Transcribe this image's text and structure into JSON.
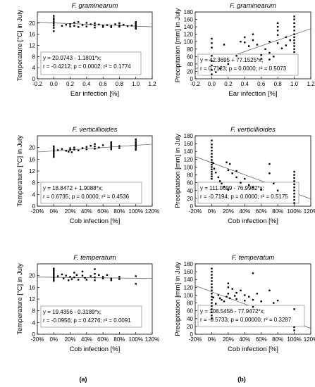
{
  "panel_labels": [
    "(a)",
    "(b)"
  ],
  "chart_data": [
    {
      "type": "scatter",
      "title": "F. graminearum",
      "xlabel": "Ear infection [%]",
      "ylabel": "Temperature [°C] in July",
      "xlim": [
        -0.2,
        1.2
      ],
      "ylim": [
        0,
        24
      ],
      "xticks": [
        -0.2,
        0,
        0.2,
        0.4,
        0.6,
        0.8,
        1,
        1.2
      ],
      "xtick_labels": [
        "-0.2",
        "0.0",
        "0.2",
        "0.4",
        "0.6",
        "0.8",
        "1.0",
        "1.2"
      ],
      "yticks": [
        0,
        4,
        8,
        12,
        16,
        20
      ],
      "ytick_labels": [
        "0",
        "4",
        "8",
        "12",
        "16",
        "20"
      ],
      "grid": false,
      "equation_lines": [
        "y = 20.0743 - 1.1801*x;",
        "r = -0.4212; p = 0.0002; r² = 0.1774"
      ],
      "regression": {
        "intercept": 20.0743,
        "slope": -1.1801
      },
      "points": [
        [
          0,
          22.6
        ],
        [
          0,
          21.8
        ],
        [
          0,
          21.2
        ],
        [
          0,
          20.5
        ],
        [
          0,
          19.8
        ],
        [
          0,
          19.1
        ],
        [
          0,
          18.3
        ],
        [
          0,
          17.1
        ],
        [
          0.1,
          19.0
        ],
        [
          0.15,
          19.4
        ],
        [
          0.2,
          18.8
        ],
        [
          0.2,
          19.6
        ],
        [
          0.25,
          20.2
        ],
        [
          0.25,
          19.0
        ],
        [
          0.3,
          20.4
        ],
        [
          0.3,
          18.6
        ],
        [
          0.35,
          19.3
        ],
        [
          0.4,
          20.1
        ],
        [
          0.4,
          18.8
        ],
        [
          0.45,
          19.6
        ],
        [
          0.5,
          20.0
        ],
        [
          0.5,
          19.2
        ],
        [
          0.5,
          18.4
        ],
        [
          0.55,
          19.5
        ],
        [
          0.6,
          19.1
        ],
        [
          0.6,
          18.6
        ],
        [
          0.65,
          19.3
        ],
        [
          0.7,
          19.0
        ],
        [
          0.7,
          18.5
        ],
        [
          0.75,
          19.6
        ],
        [
          0.8,
          20.0
        ],
        [
          0.8,
          19.2
        ],
        [
          0.8,
          18.7
        ],
        [
          0.85,
          19.4
        ],
        [
          0.9,
          18.9
        ],
        [
          0.95,
          19.1
        ],
        [
          1,
          20.4
        ],
        [
          1,
          19.8
        ],
        [
          1,
          19.2
        ],
        [
          1,
          18.6
        ],
        [
          1,
          18.0
        ]
      ]
    },
    {
      "type": "scatter",
      "title": "F. graminearum",
      "xlabel": "Ear infection [%]",
      "ylabel": "Precipitation [mm] in July",
      "xlim": [
        -0.2,
        1.2
      ],
      "ylim": [
        0,
        180
      ],
      "xticks": [
        -0.2,
        0,
        0.2,
        0.4,
        0.6,
        0.8,
        1,
        1.2
      ],
      "xtick_labels": [
        "-0.2",
        "0.0",
        "0.2",
        "0.4",
        "0.6",
        "0.8",
        "1.0",
        "1.2"
      ],
      "yticks": [
        0,
        20,
        40,
        60,
        80,
        100,
        120,
        140,
        160,
        180
      ],
      "ytick_labels": [
        "0",
        "20",
        "40",
        "60",
        "80",
        "100",
        "120",
        "140",
        "160",
        "180"
      ],
      "grid": false,
      "equation_lines": [
        "y = 42.3695 + 77.1525*x;",
        "r = 0.7123; p = 0.0000; r² = 0.5073"
      ],
      "regression": {
        "intercept": 42.3695,
        "slope": 77.1525
      },
      "points": [
        [
          0,
          108
        ],
        [
          0,
          96
        ],
        [
          0,
          84
        ],
        [
          0,
          62
        ],
        [
          0,
          48
        ],
        [
          0,
          36
        ],
        [
          0,
          24
        ],
        [
          0,
          12
        ],
        [
          0.05,
          18
        ],
        [
          0.1,
          28
        ],
        [
          0.15,
          92
        ],
        [
          0.2,
          40
        ],
        [
          0.3,
          62
        ],
        [
          0.35,
          100
        ],
        [
          0.4,
          112
        ],
        [
          0.4,
          98
        ],
        [
          0.45,
          88
        ],
        [
          0.5,
          104
        ],
        [
          0.5,
          120
        ],
        [
          0.55,
          92
        ],
        [
          0.6,
          64
        ],
        [
          0.6,
          54
        ],
        [
          0.65,
          80
        ],
        [
          0.7,
          100
        ],
        [
          0.7,
          70
        ],
        [
          0.7,
          52
        ],
        [
          0.75,
          60
        ],
        [
          0.8,
          150
        ],
        [
          0.8,
          140
        ],
        [
          0.8,
          130
        ],
        [
          0.8,
          118
        ],
        [
          0.8,
          96
        ],
        [
          0.85,
          82
        ],
        [
          0.9,
          112
        ],
        [
          0.9,
          90
        ],
        [
          0.95,
          104
        ],
        [
          1,
          168
        ],
        [
          1,
          160
        ],
        [
          1,
          150
        ],
        [
          1,
          140
        ],
        [
          1,
          130
        ],
        [
          1,
          120
        ],
        [
          1,
          112
        ],
        [
          1,
          104
        ],
        [
          1,
          96
        ],
        [
          1,
          88
        ],
        [
          1,
          80
        ],
        [
          1,
          72
        ]
      ]
    },
    {
      "type": "scatter",
      "title": "F. verticillioides",
      "xlabel": "Cob infection [%]",
      "ylabel": "Temperature [°C] in July",
      "xlim": [
        -20,
        120
      ],
      "ylim": [
        0,
        24
      ],
      "xticks": [
        -20,
        0,
        20,
        40,
        60,
        80,
        100,
        120
      ],
      "xtick_labels": [
        "-20%",
        "0%",
        "20%",
        "40%",
        "60%",
        "80%",
        "100%",
        "120%"
      ],
      "yticks": [
        0,
        4,
        8,
        12,
        16,
        20
      ],
      "ytick_labels": [
        "0",
        "4",
        "8",
        "12",
        "16",
        "20"
      ],
      "grid": false,
      "equation_lines": [
        "y = 18.8472 + 1.9088*x;",
        "r = 0.6735; p = 0.0000; r² = 0.4536"
      ],
      "regression": {
        "intercept": 18.8472,
        "slope": 1.9088,
        "x_scale": 0.01
      },
      "points": [
        [
          0,
          20.4
        ],
        [
          0,
          19.8
        ],
        [
          0,
          19.2
        ],
        [
          0,
          18.6
        ],
        [
          0,
          18.0
        ],
        [
          0,
          17.4
        ],
        [
          0,
          16.8
        ],
        [
          5,
          19.1
        ],
        [
          10,
          19.5
        ],
        [
          15,
          18.9
        ],
        [
          18,
          18.6
        ],
        [
          20,
          19.8
        ],
        [
          20,
          19.2
        ],
        [
          22,
          18.4
        ],
        [
          25,
          20.0
        ],
        [
          25,
          19.3
        ],
        [
          30,
          19.0
        ],
        [
          35,
          19.8
        ],
        [
          40,
          20.2
        ],
        [
          40,
          19.4
        ],
        [
          45,
          20.6
        ],
        [
          50,
          21.2
        ],
        [
          50,
          20.4
        ],
        [
          50,
          19.6
        ],
        [
          55,
          20.0
        ],
        [
          60,
          20.8
        ],
        [
          70,
          21.8
        ],
        [
          70,
          21.2
        ],
        [
          70,
          20.6
        ],
        [
          70,
          20.0
        ],
        [
          70,
          19.4
        ],
        [
          80,
          20.5
        ],
        [
          80,
          19.8
        ],
        [
          100,
          22.8
        ],
        [
          100,
          22.2
        ],
        [
          100,
          21.6
        ],
        [
          100,
          21.0
        ],
        [
          100,
          20.4
        ],
        [
          100,
          19.8
        ],
        [
          100,
          19.2
        ]
      ]
    },
    {
      "type": "scatter",
      "title": "F. verticillioides",
      "xlabel": "Cob infection [%]",
      "ylabel": "Precipitation [mm] in July",
      "xlim": [
        -20,
        120
      ],
      "ylim": [
        0,
        180
      ],
      "xticks": [
        -20,
        0,
        20,
        40,
        60,
        80,
        100,
        120
      ],
      "xtick_labels": [
        "-20%",
        "0%",
        "20%",
        "40%",
        "60%",
        "80%",
        "100%",
        "120%"
      ],
      "yticks": [
        0,
        20,
        40,
        60,
        80,
        100,
        120,
        140,
        160,
        180
      ],
      "ytick_labels": [
        "0",
        "20",
        "40",
        "60",
        "80",
        "100",
        "120",
        "140",
        "160",
        "180"
      ],
      "grid": false,
      "equation_lines": [
        "y = 111.0699 - 76.9962*x;",
        "r = -0.7194; p = 0.0000; r² = 0.5175"
      ],
      "regression": {
        "intercept": 111.0699,
        "slope": -76.9962,
        "x_scale": 0.01
      },
      "points": [
        [
          0,
          168
        ],
        [
          0,
          158
        ],
        [
          0,
          150
        ],
        [
          0,
          142
        ],
        [
          0,
          134
        ],
        [
          0,
          126
        ],
        [
          0,
          118
        ],
        [
          0,
          112
        ],
        [
          0,
          106
        ],
        [
          0,
          100
        ],
        [
          0,
          94
        ],
        [
          0,
          88
        ],
        [
          0,
          82
        ],
        [
          0,
          76
        ],
        [
          0,
          70
        ],
        [
          2,
          110
        ],
        [
          3,
          96
        ],
        [
          5,
          86
        ],
        [
          8,
          74
        ],
        [
          10,
          64
        ],
        [
          12,
          58
        ],
        [
          15,
          50
        ],
        [
          18,
          112
        ],
        [
          20,
          92
        ],
        [
          20,
          42
        ],
        [
          22,
          108
        ],
        [
          25,
          84
        ],
        [
          30,
          90
        ],
        [
          30,
          74
        ],
        [
          35,
          60
        ],
        [
          40,
          70
        ],
        [
          45,
          54
        ],
        [
          50,
          48
        ],
        [
          60,
          42
        ],
        [
          70,
          108
        ],
        [
          70,
          84
        ],
        [
          75,
          58
        ],
        [
          80,
          40
        ],
        [
          100,
          88
        ],
        [
          100,
          80
        ],
        [
          100,
          72
        ],
        [
          100,
          64
        ],
        [
          100,
          56
        ],
        [
          100,
          48
        ],
        [
          100,
          40
        ],
        [
          100,
          32
        ],
        [
          100,
          24
        ],
        [
          100,
          16
        ],
        [
          100,
          8
        ]
      ]
    },
    {
      "type": "scatter",
      "title": "F. temperatum",
      "xlabel": "Cob infection [%]",
      "ylabel": "Temperature [°C] in July",
      "xlim": [
        -20,
        120
      ],
      "ylim": [
        0,
        24
      ],
      "xticks": [
        -20,
        0,
        20,
        40,
        60,
        80,
        100,
        120
      ],
      "xtick_labels": [
        "-20%",
        "0%",
        "20%",
        "40%",
        "60%",
        "80%",
        "100%",
        "120%"
      ],
      "yticks": [
        0,
        4,
        8,
        12,
        16,
        20
      ],
      "ytick_labels": [
        "0",
        "4",
        "8",
        "12",
        "16",
        "20"
      ],
      "grid": false,
      "equation_lines": [
        "y = 19.4356 - 0.3189*x;",
        "r = -0.0956; p = 0.4276; r² = 0.0091"
      ],
      "regression": {
        "intercept": 19.4356,
        "slope": -0.3189,
        "x_scale": 0.01
      },
      "points": [
        [
          0,
          22.4
        ],
        [
          0,
          21.8
        ],
        [
          0,
          21.2
        ],
        [
          0,
          20.6
        ],
        [
          0,
          20.0
        ],
        [
          0,
          19.4
        ],
        [
          0,
          18.8
        ],
        [
          0,
          18.2
        ],
        [
          5,
          19.8
        ],
        [
          10,
          20.4
        ],
        [
          12,
          19.0
        ],
        [
          15,
          20.0
        ],
        [
          18,
          18.4
        ],
        [
          20,
          19.6
        ],
        [
          22,
          18.8
        ],
        [
          25,
          21.0
        ],
        [
          25,
          19.4
        ],
        [
          28,
          20.2
        ],
        [
          30,
          18.6
        ],
        [
          35,
          21.4
        ],
        [
          35,
          20.0
        ],
        [
          38,
          19.2
        ],
        [
          40,
          18.6
        ],
        [
          45,
          19.8
        ],
        [
          50,
          22.2
        ],
        [
          50,
          20.6
        ],
        [
          50,
          19.4
        ],
        [
          50,
          18.4
        ],
        [
          55,
          20.2
        ],
        [
          60,
          19.6
        ],
        [
          60,
          19.0
        ],
        [
          65,
          20.2
        ],
        [
          70,
          19.0
        ],
        [
          70,
          18.4
        ],
        [
          80,
          19.6
        ],
        [
          80,
          18.8
        ],
        [
          100,
          19.8
        ],
        [
          100,
          17.2
        ]
      ]
    },
    {
      "type": "scatter",
      "title": "F. temperatum",
      "xlabel": "Cob infection [%]",
      "ylabel": "Precipitation [mm] in July",
      "xlim": [
        -20,
        120
      ],
      "ylim": [
        0,
        180
      ],
      "xticks": [
        -20,
        0,
        20,
        40,
        60,
        80,
        100,
        120
      ],
      "xtick_labels": [
        "-20%",
        "0%",
        "20%",
        "40%",
        "60%",
        "80%",
        "100%",
        "120%"
      ],
      "yticks": [
        0,
        20,
        40,
        60,
        80,
        100,
        120,
        140,
        160,
        180
      ],
      "ytick_labels": [
        "0",
        "20",
        "40",
        "60",
        "80",
        "100",
        "120",
        "140",
        "160",
        "180"
      ],
      "grid": false,
      "equation_lines": [
        "y = 108.5456 - 77.9472*x;",
        "r = -0.5733; p = 0.00000; r² = 0.3287"
      ],
      "regression": {
        "intercept": 108.5456,
        "slope": -77.9472,
        "x_scale": 0.01
      },
      "points": [
        [
          0,
          168
        ],
        [
          0,
          160
        ],
        [
          0,
          152
        ],
        [
          0,
          144
        ],
        [
          0,
          136
        ],
        [
          0,
          128
        ],
        [
          0,
          120
        ],
        [
          0,
          112
        ],
        [
          0,
          104
        ],
        [
          0,
          96
        ],
        [
          0,
          88
        ],
        [
          0,
          80
        ],
        [
          0,
          72
        ],
        [
          0,
          64
        ],
        [
          0,
          56
        ],
        [
          0,
          48
        ],
        [
          0,
          40
        ],
        [
          2,
          94
        ],
        [
          5,
          78
        ],
        [
          8,
          100
        ],
        [
          10,
          92
        ],
        [
          12,
          88
        ],
        [
          15,
          84
        ],
        [
          18,
          96
        ],
        [
          20,
          130
        ],
        [
          20,
          120
        ],
        [
          20,
          104
        ],
        [
          22,
          92
        ],
        [
          25,
          116
        ],
        [
          28,
          98
        ],
        [
          30,
          106
        ],
        [
          30,
          90
        ],
        [
          35,
          112
        ],
        [
          40,
          100
        ],
        [
          40,
          86
        ],
        [
          45,
          96
        ],
        [
          50,
          156
        ],
        [
          50,
          88
        ],
        [
          50,
          70
        ],
        [
          55,
          104
        ],
        [
          60,
          84
        ],
        [
          70,
          112
        ],
        [
          75,
          80
        ],
        [
          80,
          86
        ],
        [
          100,
          64
        ],
        [
          100,
          18
        ],
        [
          100,
          10
        ]
      ]
    }
  ]
}
